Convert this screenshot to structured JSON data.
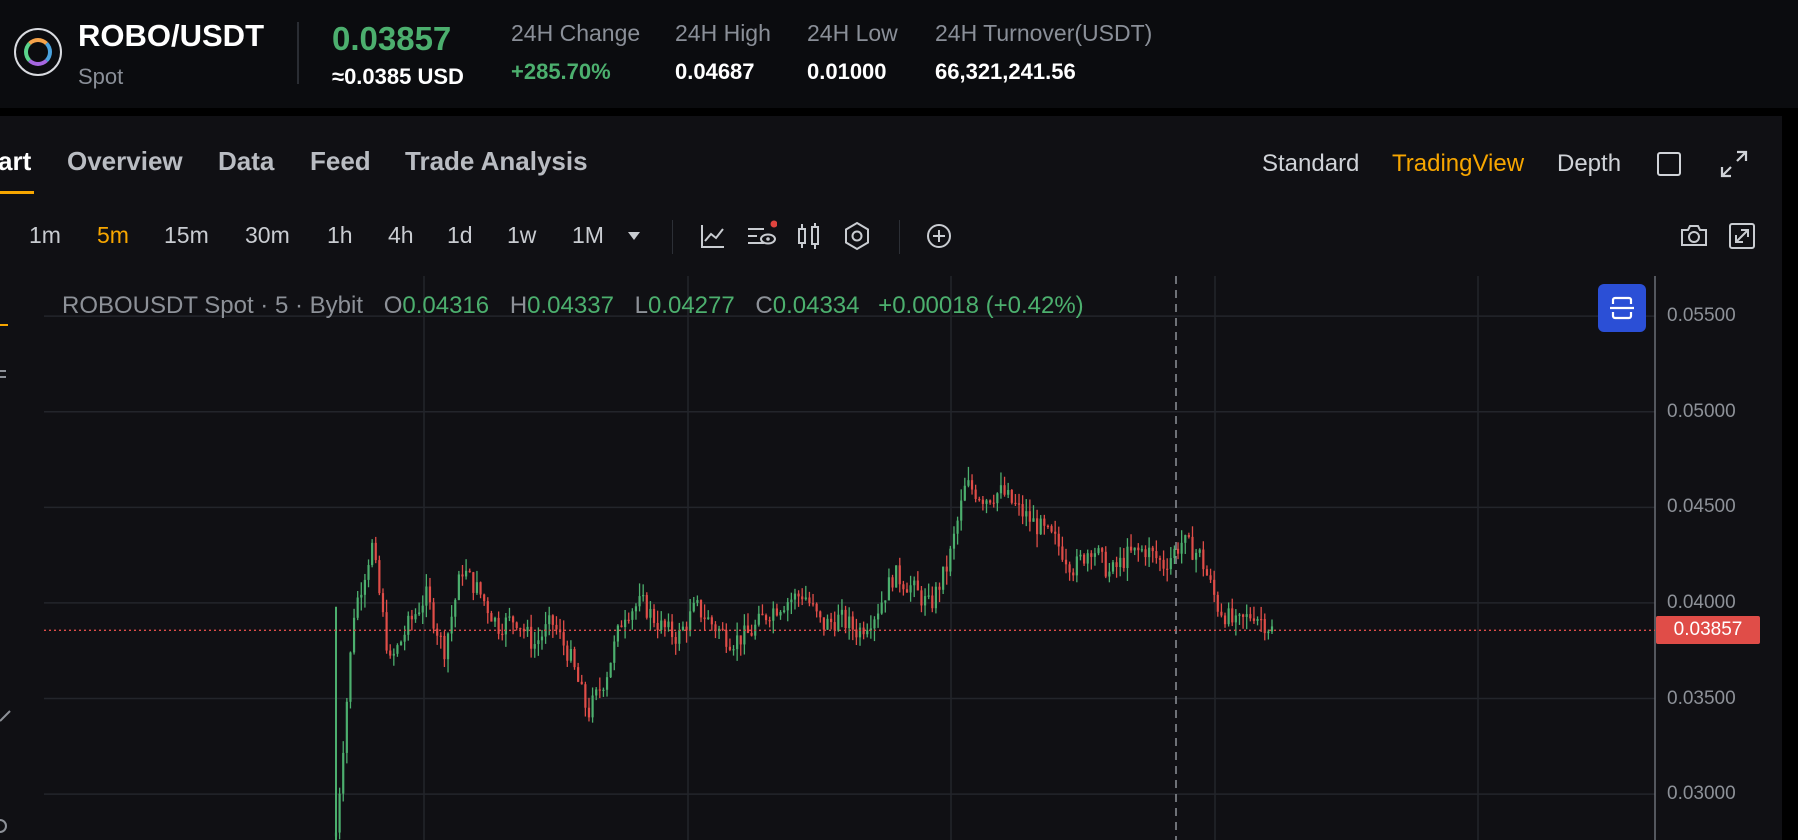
{
  "header": {
    "pair": "ROBO/USDT",
    "market": "Spot",
    "last_price": "0.03857",
    "usd_price": "≈0.0385 USD",
    "stats": [
      {
        "label": "24H Change",
        "value": "+285.70%",
        "positive": true
      },
      {
        "label": "24H High",
        "value": "0.04687"
      },
      {
        "label": "24H Low",
        "value": "0.01000"
      },
      {
        "label": "24H Turnover(USDT)",
        "value": "66,321,241.56"
      }
    ]
  },
  "tabs": [
    "art",
    "Overview",
    "Data",
    "Feed",
    "Trade Analysis"
  ],
  "views": [
    "Standard",
    "TradingView",
    "Depth"
  ],
  "active_view": "TradingView",
  "intervals": [
    "1m",
    "5m",
    "15m",
    "30m",
    "1h",
    "4h",
    "1d",
    "1w",
    "1M"
  ],
  "active_interval": "5m",
  "icons": {
    "interval_dropdown": "caret-down-icon",
    "indicators": "indicators-icon",
    "visibility": "eye-icon",
    "candle_type": "candlestick-icon",
    "settings": "hex-gear-icon",
    "add": "plus-circle-icon",
    "screenshot": "camera-icon",
    "fullscreen_chart": "expand-icon"
  },
  "legend": {
    "symbol": "ROBOUSDT Spot",
    "interval": "5",
    "exchange": "Bybit",
    "open_label": "O",
    "open": "0.04316",
    "high_label": "H",
    "high": "0.04337",
    "low_label": "L",
    "low": "0.04277",
    "close_label": "C",
    "close": "0.04334",
    "change": "+0.00018 (+0.42%)"
  },
  "colors": {
    "up": "#4caf6e",
    "down": "#e04d48",
    "accent": "#f7a600",
    "button": "#2b4fd6"
  },
  "chart_data": {
    "type": "candlestick",
    "y_axis_ticks": [
      "0.05500",
      "0.05000",
      "0.04500",
      "0.04000",
      "0.03500",
      "0.03000"
    ],
    "ylim": [
      0.0276,
      0.0571
    ],
    "current_price": "0.03857",
    "current_price_value": 0.03857,
    "trend_closes": [
      0.028,
      0.0395,
      0.043,
      0.0368,
      0.0388,
      0.0404,
      0.0375,
      0.0418,
      0.0405,
      0.0388,
      0.0392,
      0.0378,
      0.039,
      0.0372,
      0.0342,
      0.0362,
      0.0395,
      0.04,
      0.0388,
      0.0382,
      0.0398,
      0.0388,
      0.038,
      0.0384,
      0.0395,
      0.0401,
      0.0405,
      0.0388,
      0.0392,
      0.0385,
      0.0395,
      0.0415,
      0.0408,
      0.0398,
      0.042,
      0.0462,
      0.0455,
      0.0458,
      0.0448,
      0.044,
      0.0432,
      0.0418,
      0.043,
      0.0415,
      0.0425,
      0.0428,
      0.042,
      0.0432,
      0.0425,
      0.0398,
      0.0388,
      0.0395,
      0.0386
    ]
  }
}
